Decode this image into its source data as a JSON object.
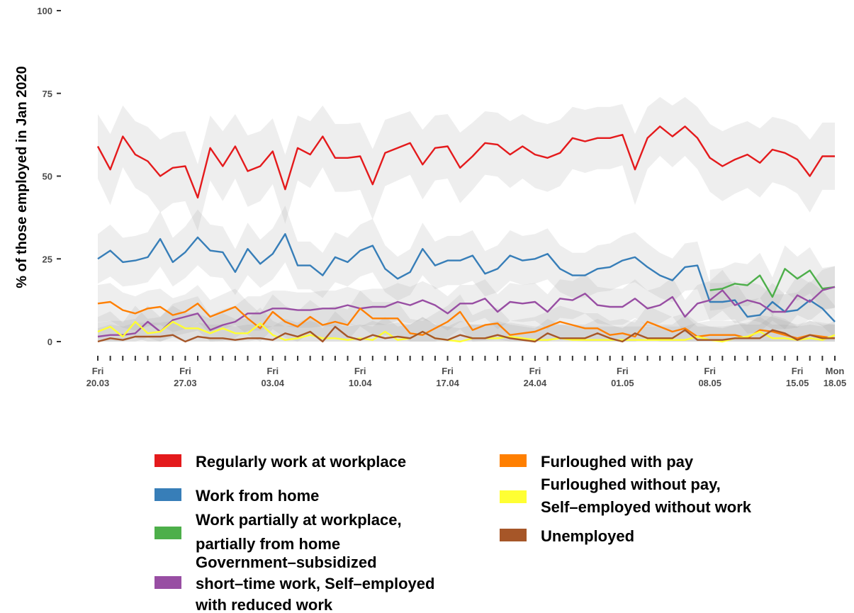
{
  "chart_data": {
    "type": "line",
    "title": "",
    "ylabel": "% of those employed in Jan 2020",
    "ylim": [
      0,
      100
    ],
    "yticks": [
      0,
      25,
      50,
      75,
      100
    ],
    "ytick_labels": [
      "0",
      "25",
      "50",
      "75",
      "100"
    ],
    "x_start": "2020-03-20",
    "x_end": "2020-05-18",
    "x_tick_labels": [
      {
        "date": "2020-03-20",
        "day": "Fri",
        "date_label": "20.03"
      },
      {
        "date": "2020-03-27",
        "day": "Fri",
        "date_label": "27.03"
      },
      {
        "date": "2020-04-03",
        "day": "Fri",
        "date_label": "03.04"
      },
      {
        "date": "2020-04-10",
        "day": "Fri",
        "date_label": "10.04"
      },
      {
        "date": "2020-04-17",
        "day": "Fri",
        "date_label": "17.04"
      },
      {
        "date": "2020-04-24",
        "day": "Fri",
        "date_label": "24.04"
      },
      {
        "date": "2020-05-01",
        "day": "Fri",
        "date_label": "01.05"
      },
      {
        "date": "2020-05-08",
        "day": "Fri",
        "date_label": "08.05"
      },
      {
        "date": "2020-05-15",
        "day": "Fri",
        "date_label": "15.05"
      },
      {
        "date": "2020-05-18",
        "day": "Mon",
        "date_label": "18.05"
      }
    ],
    "confidence_band": true,
    "legend_position": "bottom",
    "series": [
      {
        "name": "Regularly work at workplace",
        "color": "#e41a1c",
        "values": [
          59,
          52,
          62,
          56.5,
          54.5,
          50,
          52.5,
          53,
          43.5,
          58.5,
          53,
          59,
          51.5,
          53,
          57.5,
          46,
          58.5,
          56.5,
          62,
          55.5,
          55.5,
          56,
          47.5,
          57,
          58.5,
          60,
          53.5,
          58.5,
          59,
          52.5,
          56,
          60,
          59.5,
          56.5,
          59,
          56.5,
          55.5,
          57,
          61.5,
          60.5,
          61.5,
          61.5,
          62.5,
          52,
          61.5,
          65,
          62,
          65,
          61.5,
          55.5,
          53,
          55,
          56.5,
          54,
          58,
          57,
          55,
          50,
          56,
          56
        ]
      },
      {
        "name": "Work from home",
        "color": "#377eb8",
        "values": [
          25,
          27.5,
          24,
          24.5,
          25.5,
          31,
          24,
          27,
          31.5,
          27.5,
          27,
          21,
          28,
          23.5,
          26.5,
          32.5,
          23,
          23,
          20,
          25.5,
          24,
          27.5,
          29,
          22,
          19,
          21,
          28,
          23,
          24.5,
          24.5,
          26,
          20.5,
          22,
          26,
          24.5,
          25,
          26.5,
          22,
          20,
          20,
          22,
          22.5,
          24.5,
          25.5,
          22.5,
          20,
          18.5,
          22.5,
          23,
          12,
          12,
          12.5,
          7.5,
          8,
          12,
          9,
          9.5,
          12.5,
          10,
          6
        ]
      },
      {
        "name": "Work partially at workplace, partially from home",
        "color": "#4daf4a",
        "values": [
          null,
          null,
          null,
          null,
          null,
          null,
          null,
          null,
          null,
          null,
          null,
          null,
          null,
          null,
          null,
          null,
          null,
          null,
          null,
          null,
          null,
          null,
          null,
          null,
          null,
          null,
          null,
          null,
          null,
          null,
          null,
          null,
          null,
          null,
          null,
          null,
          null,
          null,
          null,
          null,
          null,
          null,
          null,
          null,
          null,
          null,
          null,
          null,
          null,
          15.5,
          16,
          17.5,
          17,
          20,
          13.5,
          22,
          19,
          21.5,
          16,
          16.5
        ]
      },
      {
        "name": "Government–subsidized short–time work, Self–employed with reduced work",
        "color": "#984ea3",
        "values": [
          1.5,
          2,
          2,
          2.5,
          6,
          3,
          6.5,
          7.5,
          8.5,
          3.5,
          5,
          6,
          8.5,
          8.5,
          10,
          10,
          9.5,
          9.5,
          10,
          10,
          11,
          10,
          10.5,
          10.5,
          12,
          11,
          12.5,
          11,
          8.5,
          11.5,
          11.5,
          13,
          9,
          12,
          11.5,
          12,
          9,
          13,
          12.5,
          14.5,
          11,
          10.5,
          10.5,
          13,
          10,
          11,
          13.5,
          7.5,
          11.5,
          12.5,
          15.5,
          11,
          12.5,
          11.5,
          9,
          9,
          14,
          12,
          15.5,
          16.5
        ]
      },
      {
        "name": "Furloughed with pay",
        "color": "#ff7f00",
        "values": [
          11.5,
          12,
          9.5,
          8.5,
          10,
          10.5,
          8,
          9,
          11.5,
          7.5,
          9,
          10.5,
          7,
          4,
          9,
          6,
          4.5,
          7.5,
          5,
          6,
          5,
          10,
          7,
          7,
          7,
          2.5,
          2,
          4,
          6,
          9,
          3.5,
          5,
          5.5,
          2,
          2.5,
          3,
          4.5,
          6,
          5,
          4,
          4,
          2,
          2.5,
          1.5,
          6,
          4.5,
          3,
          4,
          1.5,
          2,
          2,
          2,
          1,
          3.5,
          3,
          2,
          1,
          2,
          1.5,
          1
        ]
      },
      {
        "name": "Furloughed without pay, Self–employed without work",
        "color": "#ffff33",
        "values": [
          3,
          4.5,
          1.5,
          6,
          2.5,
          3,
          6,
          4,
          4,
          2.5,
          4,
          2.5,
          2.5,
          5.5,
          2,
          0.5,
          1,
          2,
          1,
          1,
          0.5,
          1,
          0.5,
          3,
          0.5,
          1,
          3,
          1,
          0.5,
          0,
          1,
          1,
          1,
          1.5,
          1,
          0.5,
          0.5,
          1,
          0.5,
          0.5,
          0.5,
          0.5,
          0.5,
          0.5,
          0.5,
          0.5,
          0.5,
          0.5,
          1.5,
          0.5,
          0,
          1,
          1.5,
          3,
          1,
          1,
          0.5,
          1,
          0.5,
          2
        ]
      },
      {
        "name": "Unemployed",
        "color": "#a65628",
        "values": [
          0,
          1,
          0.5,
          1.5,
          1.5,
          1.5,
          2,
          0,
          1.5,
          1,
          1,
          0.5,
          1,
          1,
          0.5,
          2.5,
          1.5,
          3,
          0,
          4.5,
          1.5,
          0.5,
          2,
          1,
          1.5,
          1,
          3,
          1,
          0.5,
          2,
          1,
          1,
          2,
          1,
          0.5,
          0,
          2.5,
          1,
          1,
          1,
          2.5,
          1,
          0,
          2.5,
          1,
          1,
          1,
          3.5,
          0.5,
          0.5,
          0.5,
          1,
          1,
          1,
          3.5,
          2.5,
          0.5,
          2,
          1,
          1
        ]
      }
    ]
  }
}
